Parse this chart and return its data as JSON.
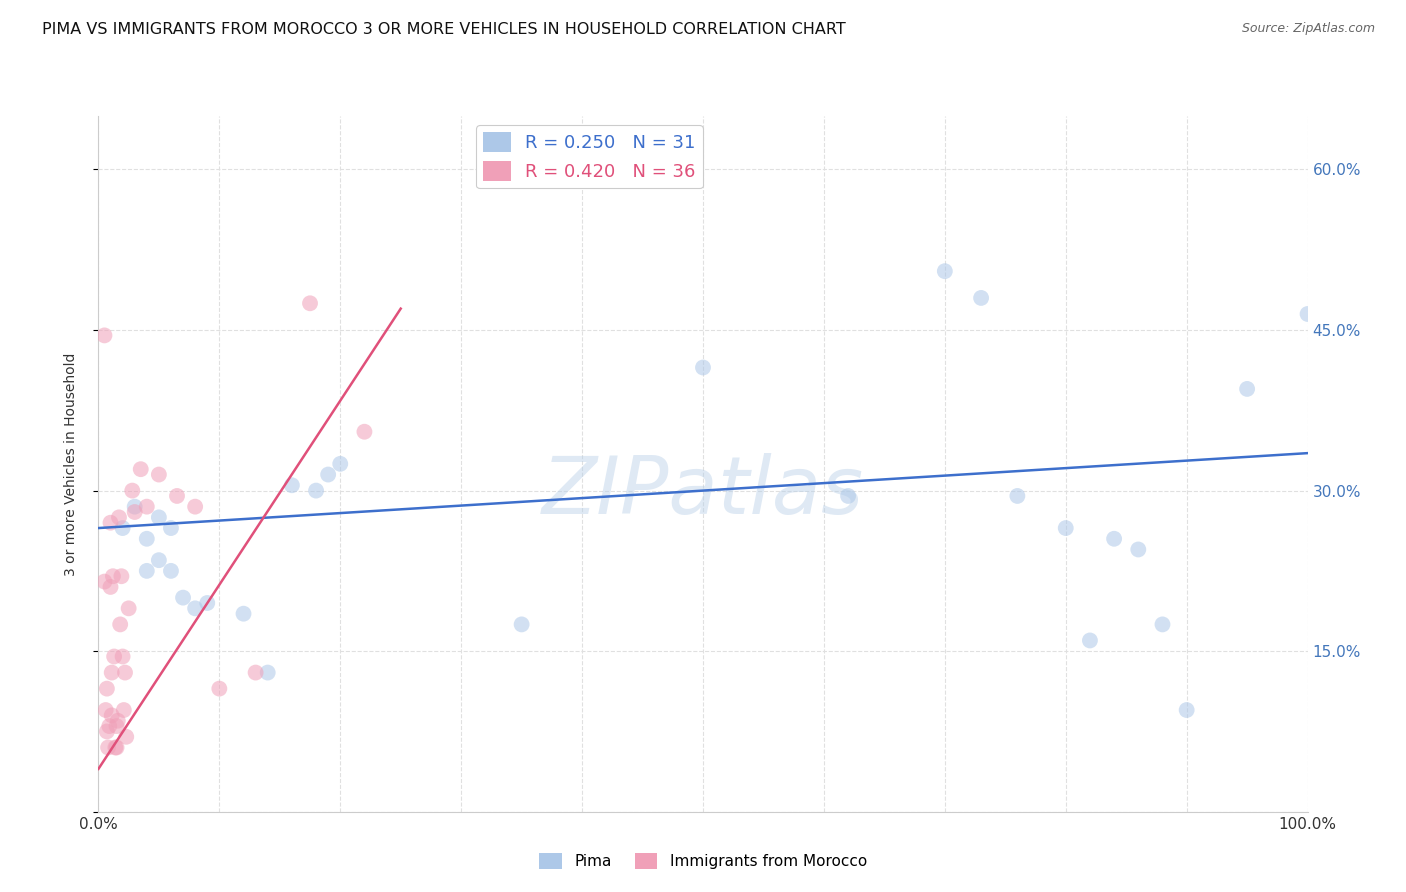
{
  "title": "PIMA VS IMMIGRANTS FROM MOROCCO 3 OR MORE VEHICLES IN HOUSEHOLD CORRELATION CHART",
  "source": "Source: ZipAtlas.com",
  "ylabel": "3 or more Vehicles in Household",
  "xlim": [
    0.0,
    1.0
  ],
  "ylim": [
    0.0,
    0.65
  ],
  "yticks": [
    0.0,
    0.15,
    0.3,
    0.45,
    0.6
  ],
  "ytick_labels": [
    "",
    "15.0%",
    "30.0%",
    "45.0%",
    "60.0%"
  ],
  "xticks": [
    0.0,
    0.1,
    0.2,
    0.3,
    0.4,
    0.5,
    0.6,
    0.7,
    0.8,
    0.9,
    1.0
  ],
  "xtick_labels": [
    "0.0%",
    "",
    "",
    "",
    "",
    "",
    "",
    "",
    "",
    "",
    "100.0%"
  ],
  "series": [
    {
      "name": "Pima",
      "R": 0.25,
      "N": 31,
      "color": "#adc8e8",
      "line_color": "#3d6fcc",
      "x": [
        0.02,
        0.03,
        0.04,
        0.04,
        0.05,
        0.05,
        0.06,
        0.06,
        0.07,
        0.08,
        0.09,
        0.12,
        0.14,
        0.16,
        0.18,
        0.19,
        0.2,
        0.35,
        0.5,
        0.62,
        0.7,
        0.73,
        0.76,
        0.8,
        0.82,
        0.84,
        0.86,
        0.88,
        0.9,
        0.95,
        1.0
      ],
      "y": [
        0.265,
        0.285,
        0.255,
        0.225,
        0.275,
        0.235,
        0.265,
        0.225,
        0.2,
        0.19,
        0.195,
        0.185,
        0.13,
        0.305,
        0.3,
        0.315,
        0.325,
        0.175,
        0.415,
        0.295,
        0.505,
        0.48,
        0.295,
        0.265,
        0.16,
        0.255,
        0.245,
        0.175,
        0.095,
        0.395,
        0.465
      ],
      "trend_x": [
        0.0,
        1.0
      ],
      "trend_y": [
        0.265,
        0.335
      ]
    },
    {
      "name": "Immigrants from Morocco",
      "R": 0.42,
      "N": 36,
      "color": "#f0a0b8",
      "line_color": "#e0507a",
      "x": [
        0.005,
        0.005,
        0.006,
        0.007,
        0.007,
        0.008,
        0.009,
        0.01,
        0.01,
        0.011,
        0.011,
        0.012,
        0.013,
        0.014,
        0.015,
        0.015,
        0.016,
        0.017,
        0.018,
        0.019,
        0.02,
        0.021,
        0.022,
        0.023,
        0.025,
        0.028,
        0.03,
        0.035,
        0.04,
        0.05,
        0.065,
        0.08,
        0.1,
        0.13,
        0.175,
        0.22
      ],
      "y": [
        0.445,
        0.215,
        0.095,
        0.075,
        0.115,
        0.06,
        0.08,
        0.27,
        0.21,
        0.09,
        0.13,
        0.22,
        0.145,
        0.06,
        0.08,
        0.06,
        0.085,
        0.275,
        0.175,
        0.22,
        0.145,
        0.095,
        0.13,
        0.07,
        0.19,
        0.3,
        0.28,
        0.32,
        0.285,
        0.315,
        0.295,
        0.285,
        0.115,
        0.13,
        0.475,
        0.355
      ],
      "trend_x": [
        0.0,
        0.25
      ],
      "trend_y": [
        0.04,
        0.47
      ]
    }
  ],
  "watermark": "ZIPatlas",
  "background_color": "#ffffff",
  "grid_color": "#e0e0e0",
  "title_fontsize": 11.5,
  "axis_label_fontsize": 10,
  "tick_color": "#4477bb",
  "tick_fontsize": 11,
  "marker_size": 130,
  "marker_alpha": 0.55
}
